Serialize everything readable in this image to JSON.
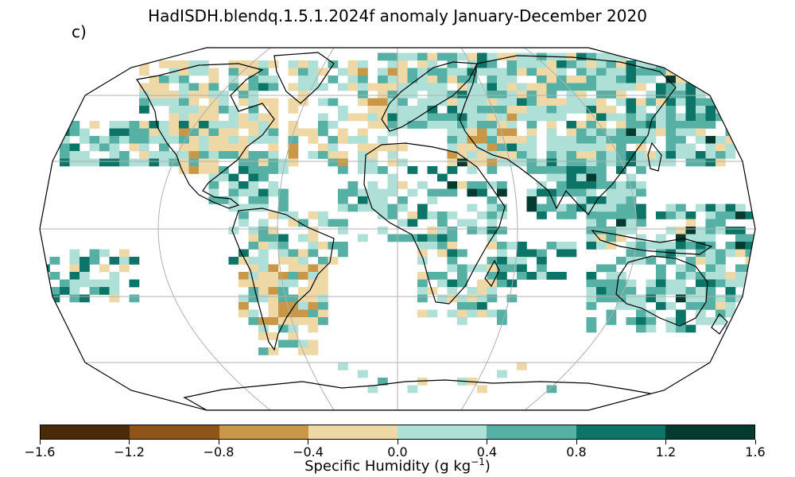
{
  "title": "HadISDH.blendq.1.5.1.2024f anomaly January-December 2020",
  "panel_label": "c)",
  "colorbar": {
    "label_main": "Specific Humidity (g kg",
    "label_sup": "−1",
    "label_end": ")",
    "ticks": [
      "−1.6",
      "−1.2",
      "−0.8",
      "−0.4",
      "0.0",
      "0.4",
      "0.8",
      "1.2",
      "1.6"
    ],
    "tick_values": [
      -1.6,
      -1.2,
      -0.8,
      -0.4,
      0.0,
      0.4,
      0.8,
      1.2,
      1.6
    ],
    "colors": [
      "#4a2a08",
      "#8e5418",
      "#c89848",
      "#eed8a6",
      "#aee0d8",
      "#56b0a4",
      "#0d7568",
      "#053a30"
    ]
  },
  "map": {
    "projection": "robinson",
    "graticule": true,
    "grid_color": "#b0b0b0",
    "missing_color": "#ffffff"
  }
}
